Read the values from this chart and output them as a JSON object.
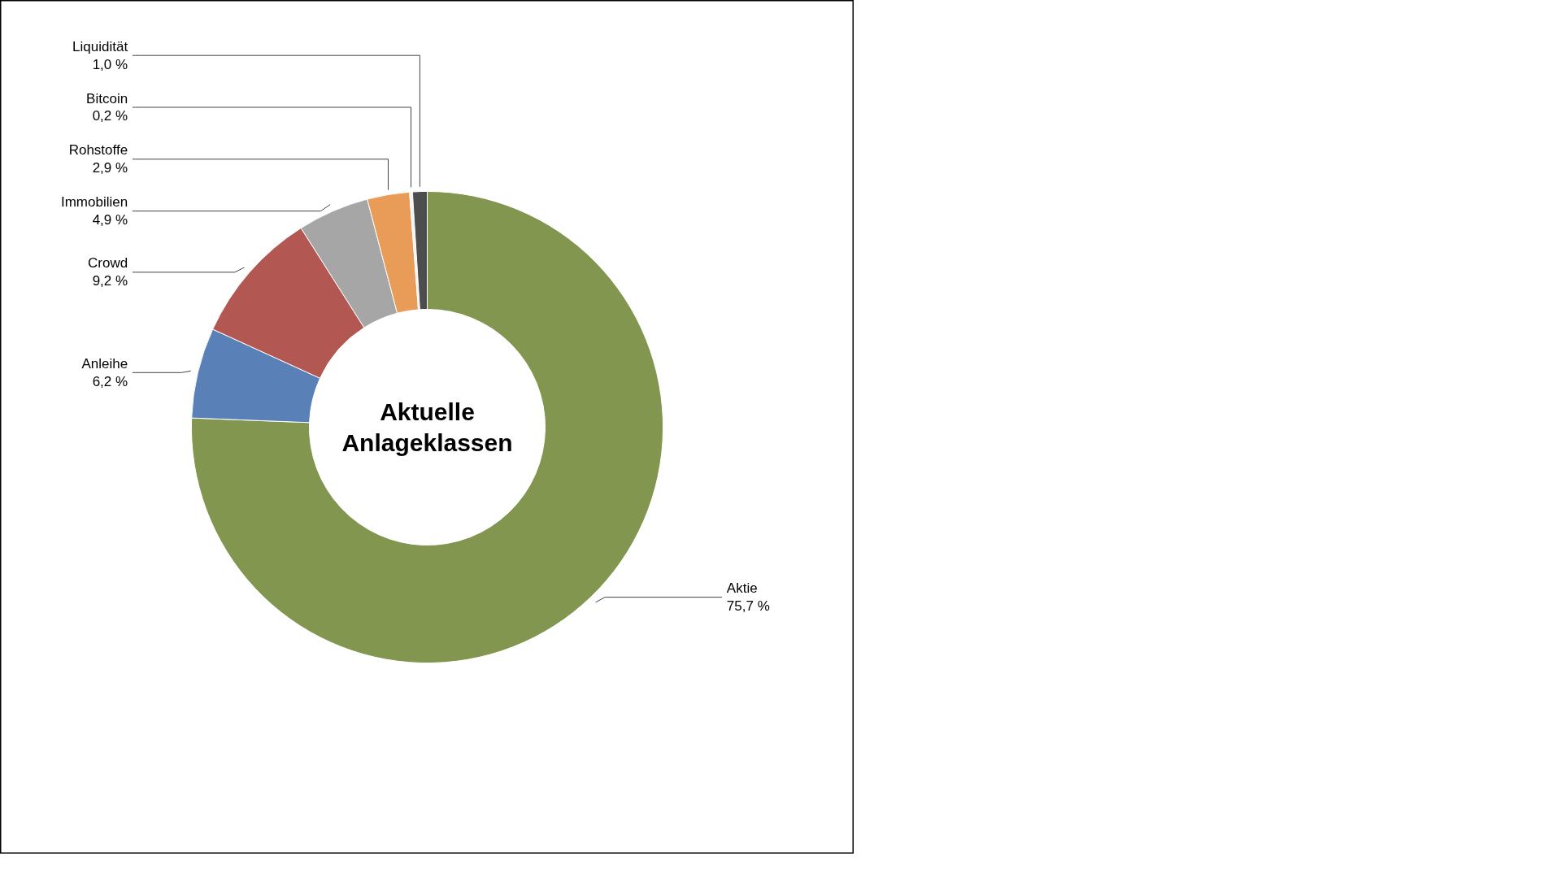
{
  "chart_data": {
    "type": "donut",
    "title": "Aktuelle Anlageklassen",
    "categories": [
      "Aktie",
      "Anleihe",
      "Crowd",
      "Immobilien",
      "Rohstoffe",
      "Bitcoin",
      "Liquidität"
    ],
    "values": [
      75.7,
      6.2,
      9.2,
      4.9,
      2.9,
      0.2,
      1.0
    ],
    "colors": [
      "#82964f",
      "#5a80b8",
      "#b25752",
      "#a6a6a6",
      "#e99c58",
      "#f2f2f2",
      "#4d4d4d"
    ],
    "value_labels": [
      "75,7 %",
      "6,2 %",
      "9,2 %",
      "4,9 %",
      "2,9 %",
      "0,2 %",
      "1,0 %"
    ]
  }
}
